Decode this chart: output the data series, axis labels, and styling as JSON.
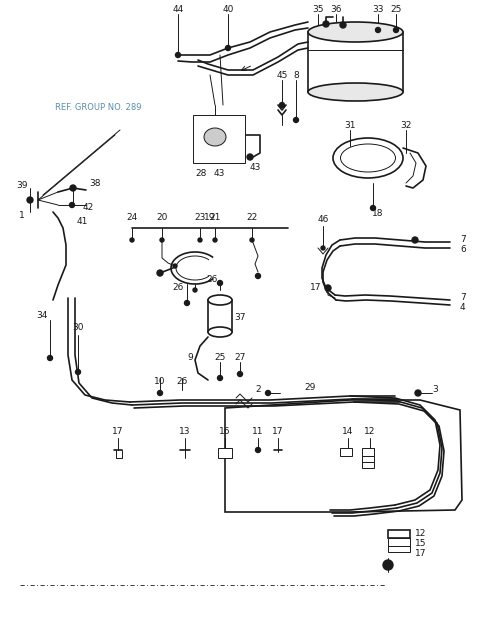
{
  "bg_color": "#ffffff",
  "line_color": "#1a1a1a",
  "label_color": "#1a1a1a",
  "ref_color": "#5a8fa8",
  "fig_width": 4.8,
  "fig_height": 6.24,
  "dpi": 100
}
